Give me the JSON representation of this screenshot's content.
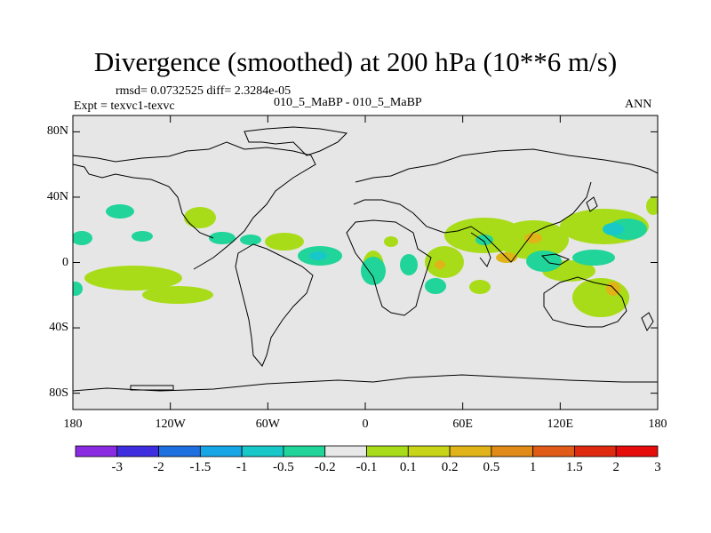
{
  "title": "Divergence (smoothed) at 200 hPa (10**6 m/s)",
  "stats": "rmsd= 0.0732525 diff= 2.3284e-05",
  "experiment": "Expt = texvc1-texvc",
  "case_label": "010_5_MaBP - 010_5_MaBP",
  "period": "ANN",
  "lat_ticks": [
    "80N",
    "40N",
    "0",
    "40S",
    "80S"
  ],
  "lon_ticks": [
    "180",
    "120W",
    "60W",
    "0",
    "60E",
    "120E",
    "180"
  ],
  "colorbar": {
    "labels": [
      "-3",
      "-2",
      "-1.5",
      "-1",
      "-0.5",
      "-0.2",
      "-0.1",
      "0.1",
      "0.2",
      "0.5",
      "1",
      "1.5",
      "2",
      "3"
    ],
    "colors": [
      "#8a2be2",
      "#3f2ee0",
      "#1e6fe0",
      "#16a6e6",
      "#18c8c8",
      "#20d49a",
      "#e8e8e8",
      "#a8dc18",
      "#c8d418",
      "#e0b418",
      "#e08a18",
      "#e05a18",
      "#e02a10",
      "#e60c0c"
    ]
  },
  "map_colors": {
    "background": "#e6e6e6",
    "coast": "#000000"
  }
}
